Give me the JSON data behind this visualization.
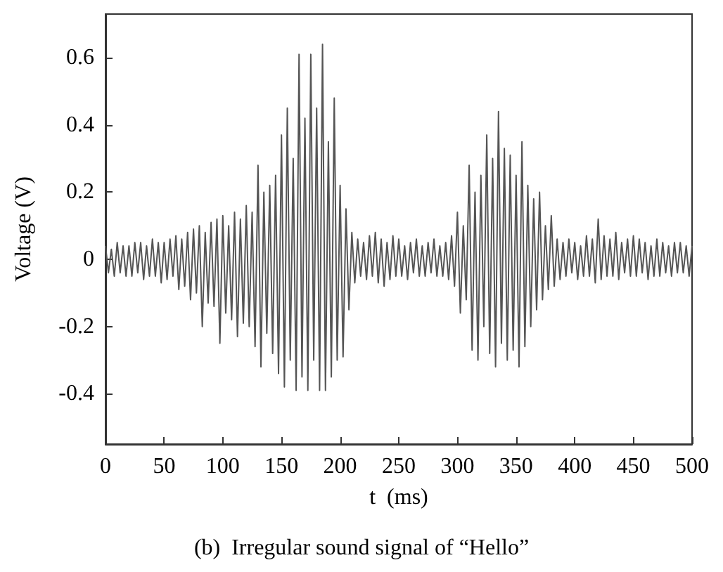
{
  "chart_data": {
    "type": "line",
    "title": "(b)  Irregular sound signal of “Hello”",
    "xlabel": "t  (ms)",
    "ylabel": "Voltage (V)",
    "xlim": [
      0,
      500
    ],
    "xticks": [
      0,
      50,
      100,
      150,
      200,
      250,
      300,
      350,
      400,
      450,
      500
    ],
    "ylim": [
      -0.55,
      0.73
    ],
    "yticks": [
      {
        "value": -0.4,
        "label": "-0.4"
      },
      {
        "value": -0.2,
        "label": "-0.2"
      },
      {
        "value": 0,
        "label": "0"
      },
      {
        "value": 0.2,
        "label": "0.2"
      },
      {
        "value": 0.4,
        "label": "0.4"
      },
      {
        "value": 0.6,
        "label": "0.6"
      }
    ],
    "grid": false,
    "marker": "none",
    "line_style": "solid",
    "series": [
      {
        "color": "#555555",
        "x": [
          0,
          2.5,
          5,
          7.5,
          10,
          12.5,
          15,
          17.5,
          20,
          22.5,
          25,
          27.5,
          30,
          32.5,
          35,
          37.5,
          40,
          42.5,
          45,
          47.5,
          50,
          52.5,
          55,
          57.5,
          60,
          62.5,
          65,
          67.5,
          70,
          72.5,
          75,
          77.5,
          80,
          82.5,
          85,
          87.5,
          90,
          92.5,
          95,
          97.5,
          100,
          102.5,
          105,
          107.5,
          110,
          112.5,
          115,
          117.5,
          120,
          122.5,
          125,
          127.5,
          130,
          132.5,
          135,
          137.5,
          140,
          142.5,
          145,
          147.5,
          150,
          152.5,
          155,
          157.5,
          160,
          162.5,
          165,
          167.5,
          170,
          172.5,
          175,
          177.5,
          180,
          182.5,
          185,
          187.5,
          190,
          192.5,
          195,
          197.5,
          200,
          202.5,
          205,
          207.5,
          210,
          212.5,
          215,
          217.5,
          220,
          222.5,
          225,
          227.5,
          230,
          232.5,
          235,
          237.5,
          240,
          242.5,
          245,
          247.5,
          250,
          252.5,
          255,
          257.5,
          260,
          262.5,
          265,
          267.5,
          270,
          272.5,
          275,
          277.5,
          280,
          282.5,
          285,
          287.5,
          290,
          292.5,
          295,
          297.5,
          300,
          302.5,
          305,
          307.5,
          310,
          312.5,
          315,
          317.5,
          320,
          322.5,
          325,
          327.5,
          330,
          332.5,
          335,
          337.5,
          340,
          342.5,
          345,
          347.5,
          350,
          352.5,
          355,
          357.5,
          360,
          362.5,
          365,
          367.5,
          370,
          372.5,
          375,
          377.5,
          380,
          382.5,
          385,
          387.5,
          390,
          392.5,
          395,
          397.5,
          400,
          402.5,
          405,
          407.5,
          410,
          412.5,
          415,
          417.5,
          420,
          422.5,
          425,
          427.5,
          430,
          432.5,
          435,
          437.5,
          440,
          442.5,
          445,
          447.5,
          450,
          452.5,
          455,
          457.5,
          460,
          462.5,
          465,
          467.5,
          470,
          472.5,
          475,
          477.5,
          480,
          482.5,
          485,
          487.5,
          490,
          492.5,
          495,
          497.5,
          500
        ],
        "values": [
          0.04,
          -0.04,
          0.03,
          -0.05,
          0.05,
          -0.04,
          0.04,
          -0.05,
          0.04,
          -0.05,
          0.05,
          -0.04,
          0.05,
          -0.06,
          0.04,
          -0.05,
          0.06,
          -0.05,
          0.05,
          -0.07,
          0.05,
          -0.06,
          0.06,
          -0.05,
          0.07,
          -0.09,
          0.06,
          -0.08,
          0.08,
          -0.12,
          0.09,
          -0.1,
          0.1,
          -0.2,
          0.08,
          -0.13,
          0.11,
          -0.14,
          0.12,
          -0.25,
          0.13,
          -0.16,
          0.1,
          -0.18,
          0.14,
          -0.23,
          0.12,
          -0.19,
          0.16,
          -0.2,
          0.14,
          -0.26,
          0.28,
          -0.32,
          0.2,
          -0.22,
          0.22,
          -0.28,
          0.25,
          -0.34,
          0.37,
          -0.38,
          0.45,
          -0.3,
          0.3,
          -0.39,
          0.61,
          -0.35,
          0.42,
          -0.39,
          0.61,
          -0.3,
          0.45,
          -0.39,
          0.64,
          -0.39,
          0.35,
          -0.35,
          0.48,
          -0.3,
          0.22,
          -0.29,
          0.15,
          -0.15,
          0.08,
          -0.07,
          0.06,
          -0.05,
          0.05,
          -0.06,
          0.07,
          -0.05,
          0.08,
          -0.07,
          0.06,
          -0.08,
          0.05,
          -0.06,
          0.07,
          -0.05,
          0.06,
          -0.05,
          0.04,
          -0.06,
          0.05,
          -0.04,
          0.06,
          -0.05,
          0.04,
          -0.05,
          0.05,
          -0.04,
          0.06,
          -0.05,
          0.04,
          -0.05,
          0.05,
          -0.06,
          0.07,
          -0.08,
          0.14,
          -0.16,
          0.1,
          -0.12,
          0.28,
          -0.27,
          0.2,
          -0.3,
          0.25,
          -0.2,
          0.37,
          -0.28,
          0.3,
          -0.32,
          0.44,
          -0.25,
          0.33,
          -0.3,
          0.31,
          -0.27,
          0.25,
          -0.32,
          0.35,
          -0.26,
          0.22,
          -0.2,
          0.18,
          -0.15,
          0.2,
          -0.12,
          0.1,
          -0.09,
          0.13,
          -0.08,
          0.06,
          -0.06,
          0.05,
          -0.05,
          0.06,
          -0.04,
          0.05,
          -0.06,
          0.04,
          -0.05,
          0.07,
          -0.05,
          0.06,
          -0.07,
          0.12,
          -0.06,
          0.07,
          -0.05,
          0.06,
          -0.05,
          0.08,
          -0.06,
          0.05,
          -0.04,
          0.06,
          -0.05,
          0.07,
          -0.05,
          0.06,
          -0.04,
          0.05,
          -0.06,
          0.04,
          -0.05,
          0.06,
          -0.05,
          0.05,
          -0.04,
          0.04,
          -0.05,
          0.05,
          -0.04,
          0.05,
          -0.04,
          0.04,
          -0.05,
          0.04
        ]
      }
    ]
  }
}
